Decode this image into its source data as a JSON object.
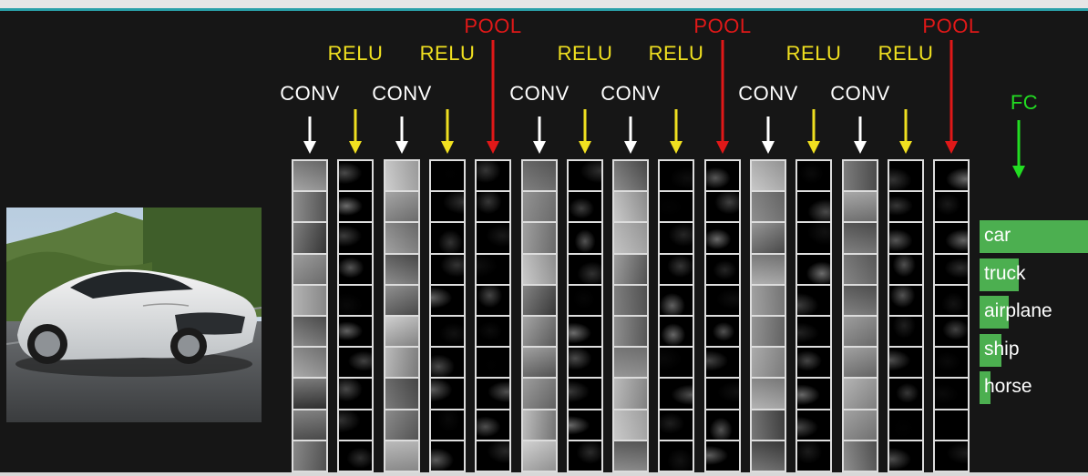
{
  "layers": [
    {
      "label": "CONV",
      "kind": "conv"
    },
    {
      "label": "RELU",
      "kind": "relu"
    },
    {
      "label": "CONV",
      "kind": "conv"
    },
    {
      "label": "RELU",
      "kind": "relu"
    },
    {
      "label": "POOL",
      "kind": "pool"
    },
    {
      "label": "CONV",
      "kind": "conv"
    },
    {
      "label": "RELU",
      "kind": "relu"
    },
    {
      "label": "CONV",
      "kind": "conv"
    },
    {
      "label": "RELU",
      "kind": "relu"
    },
    {
      "label": "POOL",
      "kind": "pool"
    },
    {
      "label": "CONV",
      "kind": "conv"
    },
    {
      "label": "RELU",
      "kind": "relu"
    },
    {
      "label": "CONV",
      "kind": "conv"
    },
    {
      "label": "RELU",
      "kind": "relu"
    },
    {
      "label": "POOL",
      "kind": "pool"
    }
  ],
  "fc": {
    "label": "FC"
  },
  "colors": {
    "conv": "#ffffff",
    "relu": "#f0e020",
    "pool": "#e01818",
    "fc": "#22dd22",
    "bar": "#4caf50"
  },
  "classes": [
    {
      "name": "car",
      "score": 1.0
    },
    {
      "name": "truck",
      "score": 0.36
    },
    {
      "name": "airplane",
      "score": 0.27
    },
    {
      "name": "ship",
      "score": 0.2
    },
    {
      "name": "horse",
      "score": 0.1
    }
  ]
}
